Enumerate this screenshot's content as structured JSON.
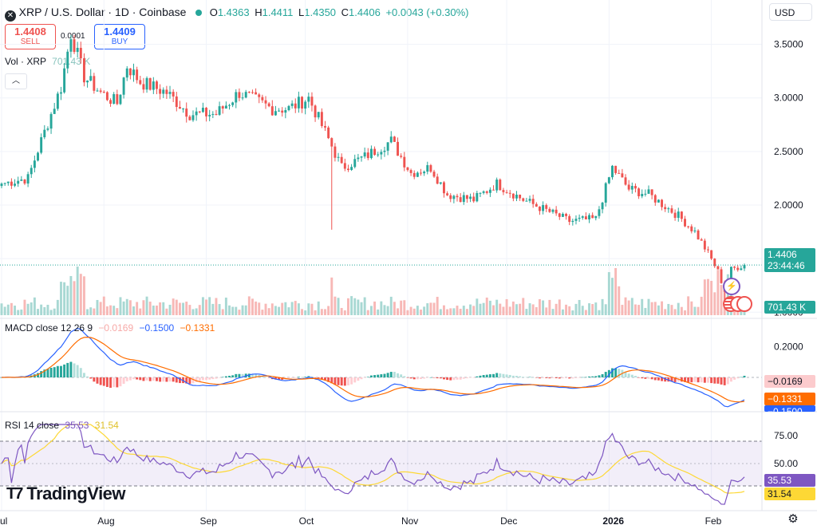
{
  "header": {
    "symbol_title": "XRP / U.S. Dollar · 1D · Coinbase",
    "open_label": "O",
    "open": "1.4363",
    "high_label": "H",
    "high": "1.4411",
    "low_label": "L",
    "low": "1.4350",
    "close_label": "C",
    "close": "1.4406",
    "change": "+0.0043 (+0.30%)",
    "currency": "USD"
  },
  "trade": {
    "sell_price": "1.4408",
    "sell_label": "SELL",
    "buy_price": "1.4409",
    "buy_label": "BUY",
    "spread": "0.0001"
  },
  "volume_legend": {
    "label": "Vol · XRP",
    "value": "701.43 K"
  },
  "price_tag": {
    "price": "1.4406",
    "countdown": "23:44:46"
  },
  "volume_tag": "701.43 K",
  "macd": {
    "label": "MACD close 12 26 9",
    "hist_value": "−0.0169",
    "macd_value": "−0.1500",
    "signal_value": "−0.1331",
    "hist_tag": "−0.0169",
    "signal_tag": "−0.1331",
    "macd_tag": "−0.1500",
    "axis_label": "0.2000"
  },
  "rsi": {
    "label": "RSI 14 close",
    "rsi_value": "35.53",
    "ma_value": "31.54",
    "rsi_tag": "35.53",
    "ma_tag": "31.54",
    "axis_labels": [
      "75.00",
      "50.00"
    ]
  },
  "branding": {
    "logo_text": "TradingView"
  },
  "colors": {
    "up": "#26a69a",
    "down": "#ef5350",
    "macd": "#2962ff",
    "signal": "#ff6d00",
    "rsi": "#7e57c2",
    "rsi_ma": "#fdd835"
  },
  "chart_data": {
    "type": "candlestick",
    "title": "XRP / U.S. Dollar · 1D · Coinbase",
    "x_ticks": [
      "Jul",
      "Aug",
      "Sep",
      "Oct",
      "Nov",
      "Dec",
      "2026",
      "Feb"
    ],
    "price_axis_ticks": [
      "3.5000",
      "3.0000",
      "2.5000",
      "2.0000",
      "1.5000",
      "1.0000"
    ],
    "ylim": [
      0.95,
      3.75
    ],
    "x_index_range": [
      0,
      225
    ],
    "key_points": [
      {
        "i": 0,
        "value": 2.2
      },
      {
        "i": 8,
        "value": 2.25
      },
      {
        "i": 12,
        "value": 2.6
      },
      {
        "i": 18,
        "value": 3.1
      },
      {
        "i": 21,
        "value": 3.6
      },
      {
        "i": 25,
        "value": 3.2
      },
      {
        "i": 30,
        "value": 3.05
      },
      {
        "i": 35,
        "value": 2.95
      },
      {
        "i": 38,
        "value": 3.3
      },
      {
        "i": 42,
        "value": 3.15
      },
      {
        "i": 50,
        "value": 3.05
      },
      {
        "i": 57,
        "value": 2.85
      },
      {
        "i": 65,
        "value": 2.85
      },
      {
        "i": 72,
        "value": 3.05
      },
      {
        "i": 82,
        "value": 2.9
      },
      {
        "i": 87,
        "value": 2.9
      },
      {
        "i": 93,
        "value": 3.0
      },
      {
        "i": 100,
        "value": 2.55
      },
      {
        "i": 103,
        "value": 2.35
      },
      {
        "i": 110,
        "value": 2.45
      },
      {
        "i": 118,
        "value": 2.6
      },
      {
        "i": 124,
        "value": 2.3
      },
      {
        "i": 130,
        "value": 2.35
      },
      {
        "i": 135,
        "value": 2.1
      },
      {
        "i": 143,
        "value": 2.05
      },
      {
        "i": 150,
        "value": 2.2
      },
      {
        "i": 158,
        "value": 2.05
      },
      {
        "i": 165,
        "value": 1.95
      },
      {
        "i": 172,
        "value": 1.85
      },
      {
        "i": 180,
        "value": 1.87
      },
      {
        "i": 185,
        "value": 2.35
      },
      {
        "i": 190,
        "value": 2.15
      },
      {
        "i": 196,
        "value": 2.1
      },
      {
        "i": 205,
        "value": 1.9
      },
      {
        "i": 210,
        "value": 1.75
      },
      {
        "i": 214,
        "value": 1.55
      },
      {
        "i": 217,
        "value": 1.38
      },
      {
        "i": 219,
        "value": 1.2
      },
      {
        "i": 221,
        "value": 1.4
      },
      {
        "i": 225,
        "value": 1.4406
      }
    ],
    "events": [
      {
        "i": 100,
        "low": 1.77
      },
      {
        "i": 219,
        "low": 1.12
      }
    ]
  }
}
